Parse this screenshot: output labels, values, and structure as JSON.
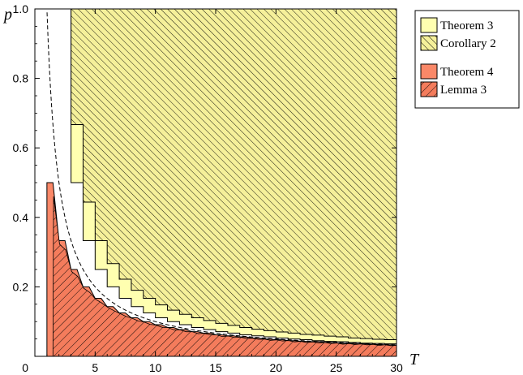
{
  "chart_data": {
    "type": "area",
    "xlabel": "T",
    "ylabel": "p",
    "xlim": [
      0,
      30
    ],
    "ylim": [
      0,
      1.0
    ],
    "x_ticks": [
      5,
      10,
      15,
      20,
      25,
      30
    ],
    "x_tick_labels": [
      "5",
      "10",
      "15",
      "20",
      "25",
      "30"
    ],
    "origin_label": "0",
    "y_ticks": [
      0.2,
      0.4,
      0.6,
      0.8,
      1.0
    ],
    "y_tick_labels": [
      "0.2",
      "0.4",
      "0.6",
      "0.8",
      "1.0"
    ],
    "grid": false,
    "legend_position": "right",
    "colors": {
      "theorem3": "#ffffb0",
      "corollary2": "#f5f09a",
      "theorem4": "#fa8868",
      "lemma3": "#f47c5c",
      "hatch": "#000000",
      "dashed_curve": "#000000"
    },
    "legend": [
      {
        "label": "Theorem 3",
        "style": "theorem3"
      },
      {
        "label": "Corollary 2",
        "style": "corollary2"
      },
      {
        "label": "Theorem 4",
        "style": "theorem4"
      },
      {
        "label": "Lemma 3",
        "style": "lemma3"
      }
    ],
    "series": [
      {
        "name": "Theorem 3",
        "description_rule": "upper region starting at 1/(T-1) for integer T",
        "T": [
          2,
          3,
          4,
          5,
          6,
          7,
          8,
          9,
          10,
          11,
          12,
          13,
          14,
          15,
          16,
          17,
          18,
          19,
          20,
          21,
          22,
          23,
          24,
          25,
          26,
          27,
          28,
          29,
          30
        ],
        "p_lower": [
          1.0,
          0.5,
          0.333,
          0.25,
          0.2,
          0.167,
          0.143,
          0.125,
          0.111,
          0.1,
          0.091,
          0.083,
          0.077,
          0.071,
          0.067,
          0.062,
          0.059,
          0.056,
          0.053,
          0.05,
          0.048,
          0.045,
          0.043,
          0.042,
          0.04,
          0.038,
          0.037,
          0.036,
          0.034
        ]
      },
      {
        "name": "Corollary 2",
        "T": [
          2,
          3,
          4,
          5,
          6,
          7,
          8,
          9,
          10,
          11,
          12,
          13,
          14,
          15,
          16,
          17,
          18,
          19,
          20,
          21,
          22,
          23,
          24,
          25,
          26,
          27,
          28,
          29,
          30
        ],
        "p_lower": [
          1.0,
          0.667,
          0.444,
          0.333,
          0.267,
          0.222,
          0.19,
          0.167,
          0.148,
          0.133,
          0.121,
          0.111,
          0.103,
          0.095,
          0.089,
          0.083,
          0.078,
          0.074,
          0.07,
          0.067,
          0.063,
          0.061,
          0.058,
          0.056,
          0.053,
          0.051,
          0.049,
          0.048,
          0.046
        ]
      },
      {
        "name": "Theorem 4",
        "T": [
          1,
          2,
          3,
          4,
          5,
          6,
          7,
          8,
          9,
          10,
          11,
          12,
          13,
          14,
          15,
          16,
          17,
          18,
          19,
          20,
          21,
          22,
          23,
          24,
          25,
          26,
          27,
          28,
          29,
          30
        ],
        "p_upper": [
          0.5,
          0.333,
          0.25,
          0.2,
          0.167,
          0.143,
          0.125,
          0.111,
          0.1,
          0.091,
          0.083,
          0.077,
          0.071,
          0.067,
          0.062,
          0.059,
          0.056,
          0.053,
          0.05,
          0.048,
          0.045,
          0.043,
          0.042,
          0.04,
          0.038,
          0.037,
          0.036,
          0.034,
          0.033,
          0.032
        ]
      },
      {
        "name": "Lemma 3",
        "T": [
          1,
          2,
          3,
          4,
          5,
          6,
          7,
          8,
          9,
          10,
          11,
          12,
          13,
          14,
          15,
          16,
          17,
          18,
          19,
          20,
          21,
          22,
          23,
          24,
          25,
          26,
          27,
          28,
          29,
          30
        ],
        "p_upper": [
          0.5,
          0.333,
          0.25,
          0.2,
          0.167,
          0.143,
          0.125,
          0.111,
          0.1,
          0.091,
          0.083,
          0.077,
          0.071,
          0.067,
          0.062,
          0.059,
          0.056,
          0.053,
          0.05,
          0.048,
          0.045,
          0.043,
          0.042,
          0.04,
          0.038,
          0.037,
          0.036,
          0.034,
          0.033,
          0.032
        ]
      },
      {
        "name": "dashed boundary",
        "formula": "p = 1/T",
        "T_range": [
          1.0,
          30
        ]
      }
    ]
  }
}
